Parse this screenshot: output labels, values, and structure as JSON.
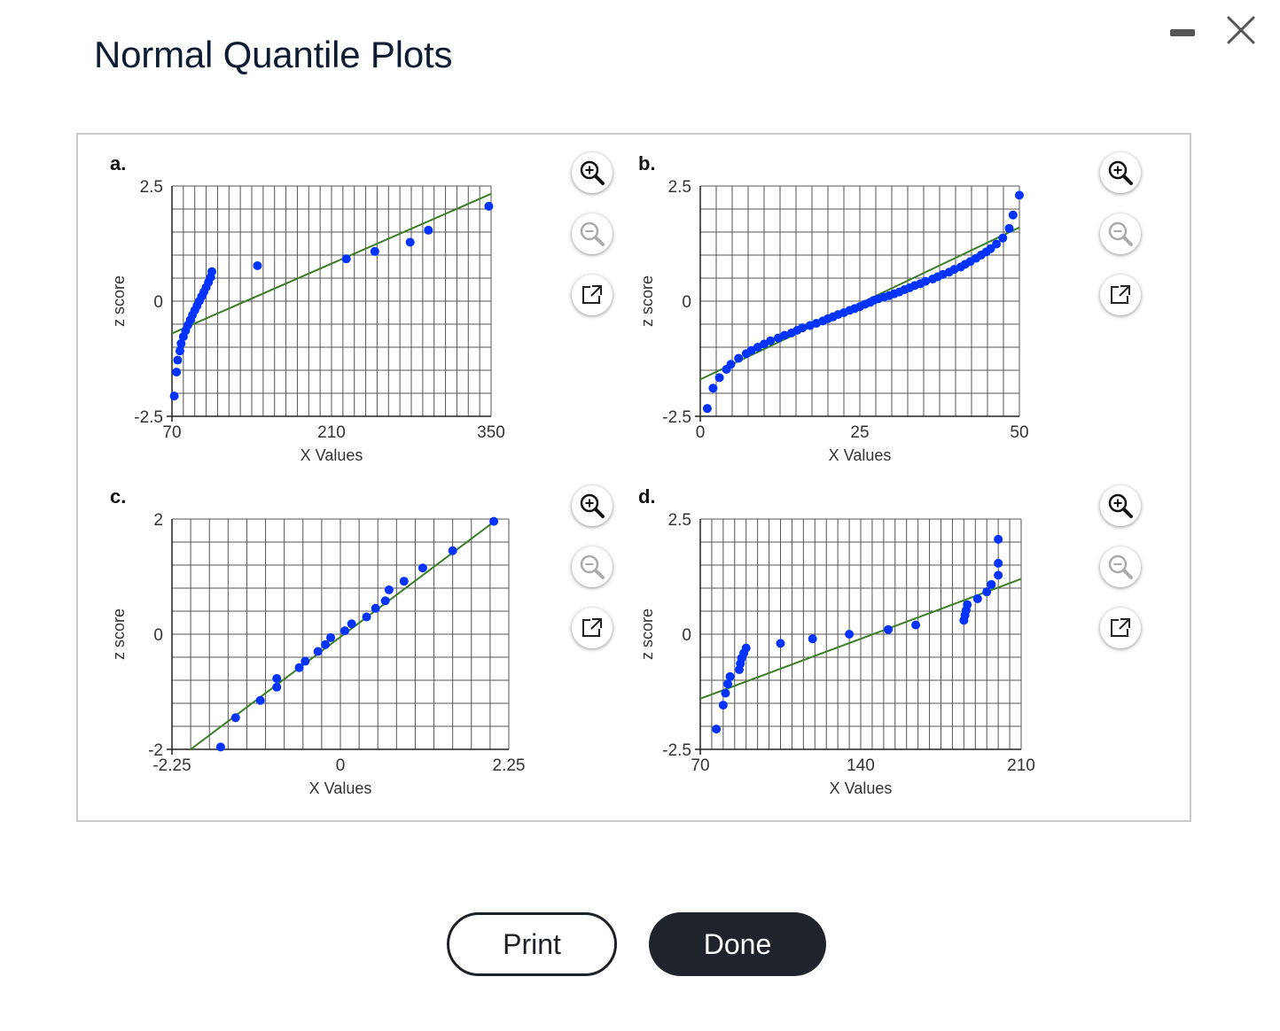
{
  "window": {
    "title": "Normal Quantile Plots",
    "minimize_icon": "minimize-icon",
    "close_icon": "close-icon"
  },
  "buttons": {
    "print": "Print",
    "done": "Done"
  },
  "colors": {
    "point": "#0033ff",
    "line": "#3a7d24",
    "grid": "#555555",
    "button_dark": "#1f232b"
  },
  "panel_tools": [
    "zoom-in-icon",
    "zoom-out-icon",
    "popout-icon"
  ],
  "chart_data": [
    {
      "id": "a",
      "label": "a.",
      "type": "scatter",
      "xlabel": "X Values",
      "ylabel": "z score",
      "xlim": [
        70,
        350
      ],
      "ylim": [
        -2.5,
        2.5
      ],
      "xticks": [
        70,
        210,
        350
      ],
      "xtick_labels": [
        "70",
        "210",
        "350"
      ],
      "yticks": [
        -2.5,
        0,
        2.5
      ],
      "ytick_labels": [
        "-2.5",
        "0",
        "2.5"
      ],
      "xgrid_step": 10,
      "ygrid_step": 0.5,
      "line": [
        [
          70,
          -0.7
        ],
        [
          350,
          2.33
        ]
      ],
      "points": [
        [
          72,
          -2.06
        ],
        [
          74,
          -1.54
        ],
        [
          75,
          -1.28
        ],
        [
          77,
          -1.08
        ],
        [
          78,
          -0.92
        ],
        [
          80,
          -0.77
        ],
        [
          82,
          -0.64
        ],
        [
          84,
          -0.52
        ],
        [
          86,
          -0.41
        ],
        [
          88,
          -0.3
        ],
        [
          90,
          -0.2
        ],
        [
          92,
          -0.1
        ],
        [
          94,
          0
        ],
        [
          96,
          0.1
        ],
        [
          98,
          0.2
        ],
        [
          100,
          0.3
        ],
        [
          102,
          0.41
        ],
        [
          104,
          0.52
        ],
        [
          105,
          0.64
        ],
        [
          145,
          0.77
        ],
        [
          223,
          0.92
        ],
        [
          248,
          1.08
        ],
        [
          279,
          1.28
        ],
        [
          295,
          1.54
        ],
        [
          348,
          2.06
        ]
      ]
    },
    {
      "id": "b",
      "label": "b.",
      "type": "scatter",
      "xlabel": "X Values",
      "ylabel": "z score",
      "xlim": [
        0,
        50
      ],
      "ylim": [
        -2.5,
        2.5
      ],
      "xticks": [
        0,
        25,
        50
      ],
      "xtick_labels": [
        "0",
        "25",
        "50"
      ],
      "yticks": [
        -2.5,
        0,
        2.5
      ],
      "ytick_labels": [
        "-2.5",
        "0",
        "2.5"
      ],
      "xgrid_step": 2.5,
      "ygrid_step": 0.5,
      "line": [
        [
          0,
          -1.7
        ],
        [
          50,
          1.6
        ]
      ],
      "points": [
        [
          1.1,
          -2.33
        ],
        [
          2.0,
          -1.89
        ],
        [
          3.0,
          -1.66
        ],
        [
          4.1,
          -1.48
        ],
        [
          4.8,
          -1.37
        ],
        [
          6.0,
          -1.24
        ],
        [
          7.2,
          -1.14
        ],
        [
          8.0,
          -1.07
        ],
        [
          9.0,
          -1.0
        ],
        [
          10.0,
          -0.93
        ],
        [
          11.0,
          -0.86
        ],
        [
          12.2,
          -0.8
        ],
        [
          13.2,
          -0.74
        ],
        [
          14.3,
          -0.69
        ],
        [
          15.2,
          -0.63
        ],
        [
          16.0,
          -0.58
        ],
        [
          17.2,
          -0.53
        ],
        [
          18.2,
          -0.48
        ],
        [
          19.2,
          -0.43
        ],
        [
          20.0,
          -0.38
        ],
        [
          20.8,
          -0.34
        ],
        [
          21.6,
          -0.29
        ],
        [
          22.5,
          -0.25
        ],
        [
          23.4,
          -0.2
        ],
        [
          24.2,
          -0.16
        ],
        [
          25.0,
          -0.12
        ],
        [
          25.8,
          -0.07
        ],
        [
          26.6,
          -0.03
        ],
        [
          27.2,
          0.02
        ],
        [
          27.9,
          0.05
        ],
        [
          28.8,
          0.09
        ],
        [
          29.6,
          0.12
        ],
        [
          30.4,
          0.16
        ],
        [
          31.2,
          0.2
        ],
        [
          32.0,
          0.25
        ],
        [
          32.8,
          0.29
        ],
        [
          33.6,
          0.34
        ],
        [
          34.5,
          0.38
        ],
        [
          35.3,
          0.43
        ],
        [
          36.4,
          0.48
        ],
        [
          37.2,
          0.53
        ],
        [
          38.0,
          0.58
        ],
        [
          39.0,
          0.63
        ],
        [
          39.8,
          0.69
        ],
        [
          40.8,
          0.74
        ],
        [
          41.5,
          0.8
        ],
        [
          42.3,
          0.86
        ],
        [
          43.2,
          0.93
        ],
        [
          44.0,
          1.0
        ],
        [
          44.8,
          1.07
        ],
        [
          45.5,
          1.14
        ],
        [
          46.4,
          1.24
        ],
        [
          47.4,
          1.37
        ],
        [
          48.4,
          1.58
        ],
        [
          49.0,
          1.87
        ],
        [
          50.0,
          2.3
        ]
      ]
    },
    {
      "id": "c",
      "label": "c.",
      "type": "scatter",
      "xlabel": "X Values",
      "ylabel": "z score",
      "xlim": [
        -2.25,
        2.25
      ],
      "ylim": [
        -2,
        2
      ],
      "xticks": [
        -2.25,
        0,
        2.25
      ],
      "xtick_labels": [
        "-2.25",
        "0",
        "2.25"
      ],
      "yticks": [
        -2,
        0,
        2
      ],
      "ytick_labels": [
        "-2",
        "0",
        "2"
      ],
      "xgrid_step": 0.25,
      "ygrid_step": 0.4,
      "line": [
        [
          -2.0,
          -2.0
        ],
        [
          2.1,
          2.0
        ]
      ],
      "points": [
        [
          -1.6,
          -1.96
        ],
        [
          -1.4,
          -1.45
        ],
        [
          -1.07,
          -1.15
        ],
        [
          -0.85,
          -0.92
        ],
        [
          -0.85,
          -0.77
        ],
        [
          -0.55,
          -0.58
        ],
        [
          -0.47,
          -0.47
        ],
        [
          -0.3,
          -0.3
        ],
        [
          -0.2,
          -0.18
        ],
        [
          -0.13,
          -0.06
        ],
        [
          0.06,
          0.06
        ],
        [
          0.15,
          0.18
        ],
        [
          0.35,
          0.3
        ],
        [
          0.47,
          0.45
        ],
        [
          0.6,
          0.58
        ],
        [
          0.65,
          0.77
        ],
        [
          0.85,
          0.92
        ],
        [
          1.1,
          1.15
        ],
        [
          1.5,
          1.45
        ],
        [
          2.05,
          1.96
        ]
      ]
    },
    {
      "id": "d",
      "label": "d.",
      "type": "scatter",
      "xlabel": "X Values",
      "ylabel": "z score",
      "xlim": [
        70,
        210
      ],
      "ylim": [
        -2.5,
        2.5
      ],
      "xticks": [
        70,
        140,
        210
      ],
      "xtick_labels": [
        "70",
        "140",
        "210"
      ],
      "yticks": [
        -2.5,
        0,
        2.5
      ],
      "ytick_labels": [
        "-2.5",
        "0",
        "2.5"
      ],
      "xgrid_step": 5,
      "ygrid_step": 0.5,
      "line": [
        [
          70,
          -1.4
        ],
        [
          210,
          1.2
        ]
      ],
      "points": [
        [
          77,
          -2.06
        ],
        [
          80,
          -1.54
        ],
        [
          81,
          -1.28
        ],
        [
          82,
          -1.08
        ],
        [
          83,
          -0.92
        ],
        [
          87,
          -0.77
        ],
        [
          87.5,
          -0.64
        ],
        [
          88,
          -0.52
        ],
        [
          89,
          -0.41
        ],
        [
          90,
          -0.3
        ],
        [
          105,
          -0.2
        ],
        [
          119,
          -0.1
        ],
        [
          135,
          0
        ],
        [
          152,
          0.1
        ],
        [
          164,
          0.2
        ],
        [
          185,
          0.3
        ],
        [
          185.5,
          0.41
        ],
        [
          186,
          0.52
        ],
        [
          186.5,
          0.64
        ],
        [
          191,
          0.77
        ],
        [
          195,
          0.92
        ],
        [
          197,
          1.08
        ],
        [
          200,
          1.28
        ],
        [
          200,
          1.54
        ],
        [
          200,
          2.06
        ]
      ]
    }
  ]
}
